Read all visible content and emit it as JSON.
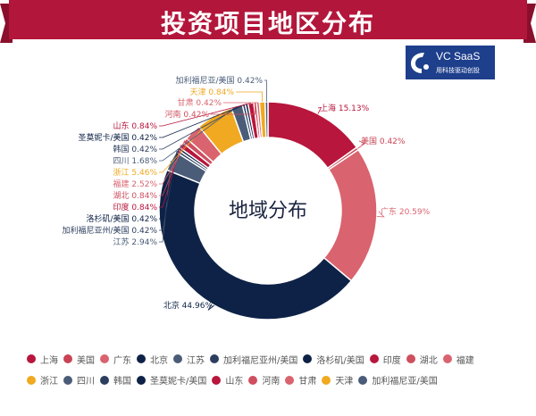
{
  "banner": {
    "title": "投资项目地区分布",
    "color": "#b3163b"
  },
  "logo": {
    "text": "VC SaaS",
    "subtext": "用科技驱动创投"
  },
  "chart_data": {
    "type": "pie",
    "variant": "donut",
    "title": "投资项目地区分布",
    "center_label": "地域分布",
    "slices": [
      {
        "name": "上海",
        "value": 15.13,
        "label": "上海 15.13%",
        "color": "#b8163c"
      },
      {
        "name": "美国",
        "value": 0.42,
        "label": "美国 0.42%",
        "color": "#c84455"
      },
      {
        "name": "广东",
        "value": 20.59,
        "label": "广东 20.59%",
        "color": "#d9636e"
      },
      {
        "name": "北京",
        "value": 44.96,
        "label": "北京 44.96%",
        "color": "#0e2247"
      },
      {
        "name": "江苏",
        "value": 2.94,
        "label": "江苏 2.94%",
        "color": "#4a5c78"
      },
      {
        "name": "加利福尼亚州/美国",
        "value": 0.42,
        "label": "加利福尼亚州/美国 0.42%",
        "color": "#2c3e5e"
      },
      {
        "name": "洛杉矶/美国",
        "value": 0.42,
        "label": "洛杉矶/美国 0.42%",
        "color": "#0e2247"
      },
      {
        "name": "印度",
        "value": 0.84,
        "label": "印度 0.84%",
        "color": "#b8163c"
      },
      {
        "name": "湖北",
        "value": 0.84,
        "label": "湖北 0.84%",
        "color": "#cf4f5e"
      },
      {
        "name": "福建",
        "value": 2.52,
        "label": "福建 2.52%",
        "color": "#d9636e"
      },
      {
        "name": "浙江",
        "value": 5.46,
        "label": "浙江 5.46%",
        "color": "#f0a920"
      },
      {
        "name": "四川",
        "value": 1.68,
        "label": "四川 1.68%",
        "color": "#4a5c78"
      },
      {
        "name": "韩国",
        "value": 0.42,
        "label": "韩国 0.42%",
        "color": "#2c3e5e"
      },
      {
        "name": "圣莫妮卡/美国",
        "value": 0.42,
        "label": "圣莫妮卡/美国 0.42%",
        "color": "#0e2247"
      },
      {
        "name": "山东",
        "value": 0.84,
        "label": "山东 0.84%",
        "color": "#b8163c"
      },
      {
        "name": "河南",
        "value": 0.42,
        "label": "河南 0.42%",
        "color": "#cf4f5e"
      },
      {
        "name": "甘肃",
        "value": 0.42,
        "label": "甘肃 0.42%",
        "color": "#d9636e"
      },
      {
        "name": "天津",
        "value": 0.84,
        "label": "天津 0.84%",
        "color": "#f0a920"
      },
      {
        "name": "加利福尼亚/美国",
        "value": 0.42,
        "label": "加利福尼亚/美国 0.42%",
        "color": "#4a5c78"
      }
    ],
    "legend_position": "bottom"
  }
}
